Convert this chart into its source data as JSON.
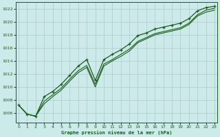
{
  "title": "Graphe pression niveau de la mer (hPa)",
  "bg_color": "#cceaea",
  "grid_color": "#b0c8c8",
  "line_color": "#1a5c1a",
  "xlim": [
    -0.3,
    23.3
  ],
  "ylim": [
    1004.5,
    1023.0
  ],
  "yticks": [
    1006,
    1008,
    1010,
    1012,
    1014,
    1016,
    1018,
    1020,
    1022
  ],
  "xticks": [
    0,
    1,
    2,
    3,
    4,
    5,
    6,
    7,
    8,
    9,
    10,
    11,
    12,
    13,
    14,
    15,
    16,
    17,
    18,
    19,
    20,
    21,
    22,
    23
  ],
  "series1": [
    1007.2,
    1005.8,
    1005.5,
    1007.8,
    1008.8,
    1009.8,
    1011.2,
    1012.5,
    1013.3,
    1010.4,
    1013.5,
    1014.2,
    1015.0,
    1015.8,
    1017.0,
    1017.6,
    1018.2,
    1018.5,
    1018.8,
    1019.1,
    1019.8,
    1021.1,
    1021.8,
    1022.1
  ],
  "series2": [
    1007.2,
    1005.8,
    1005.5,
    1008.5,
    1009.3,
    1010.4,
    1011.8,
    1013.2,
    1014.2,
    1011.0,
    1014.2,
    1015.0,
    1015.7,
    1016.6,
    1017.9,
    1018.3,
    1018.9,
    1019.2,
    1019.5,
    1019.8,
    1020.5,
    1021.7,
    1022.2,
    1022.4
  ],
  "series3": [
    1007.2,
    1005.8,
    1005.5,
    1007.4,
    1008.5,
    1009.5,
    1010.9,
    1012.2,
    1013.0,
    1010.0,
    1013.2,
    1014.0,
    1014.7,
    1015.5,
    1016.8,
    1017.4,
    1018.0,
    1018.3,
    1018.6,
    1018.9,
    1019.6,
    1020.9,
    1021.5,
    1021.8
  ]
}
